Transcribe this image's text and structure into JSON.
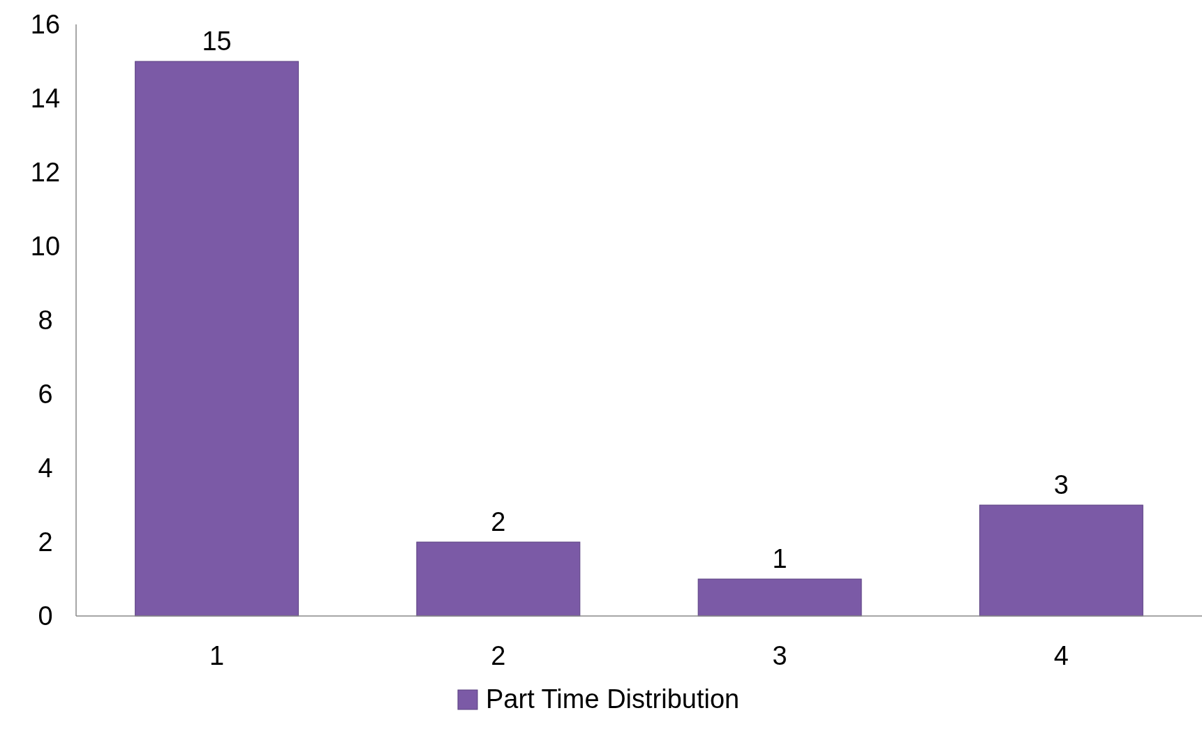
{
  "chart_data": {
    "type": "bar",
    "categories": [
      "1",
      "2",
      "3",
      "4"
    ],
    "series": [
      {
        "name": "Part Time Distribution",
        "color": "#7b5aa6",
        "values": [
          15,
          2,
          1,
          3
        ]
      }
    ],
    "ylim": [
      0,
      16
    ],
    "yticks": [
      0,
      2,
      4,
      6,
      8,
      10,
      12,
      14,
      16
    ],
    "grid": false,
    "data_labels": true,
    "legend": "bottom"
  }
}
